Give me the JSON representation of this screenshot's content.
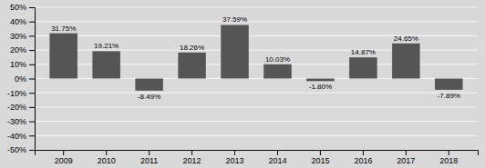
{
  "chart_data": {
    "type": "bar",
    "categories": [
      "2009",
      "2010",
      "2011",
      "2012",
      "2013",
      "2014",
      "2015",
      "2016",
      "2017",
      "2018"
    ],
    "values": [
      31.75,
      19.21,
      -8.49,
      18.26,
      37.59,
      10.03,
      -1.8,
      14.87,
      24.65,
      -7.89
    ],
    "value_labels": [
      "31.75%",
      "19.21%",
      "-8.49%",
      "18.26%",
      "37.59%",
      "10.03%",
      "-1.80%",
      "14.87%",
      "24.65%",
      "-7.89%"
    ],
    "color": "#555555",
    "ylim": [
      -50,
      50
    ],
    "yticks": [
      {
        "value": -50,
        "label": "-50%"
      },
      {
        "value": -40,
        "label": "-40%"
      },
      {
        "value": -30,
        "label": "-30%"
      },
      {
        "value": -20,
        "label": "-20%"
      },
      {
        "value": -10,
        "label": "-10%"
      },
      {
        "value": 0,
        "label": "0%"
      },
      {
        "value": 10,
        "label": "10%"
      },
      {
        "value": 20,
        "label": "20%"
      },
      {
        "value": 30,
        "label": "30%"
      },
      {
        "value": 40,
        "label": "40%"
      },
      {
        "value": 50,
        "label": "50%"
      }
    ],
    "grid": true,
    "data_labels": true
  }
}
